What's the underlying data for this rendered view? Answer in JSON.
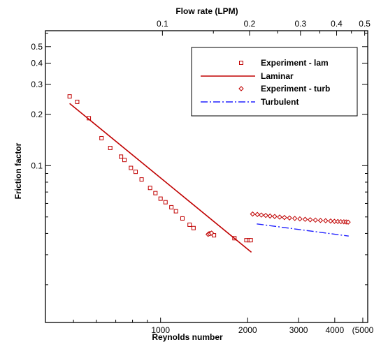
{
  "chart_data": {
    "type": "scatter",
    "xlabel": "Reynolds number",
    "x2label": "Flow rate (LPM)",
    "ylabel": "Friction factor",
    "xscale": "log",
    "yscale": "log",
    "xlim": [
      400,
      5200
    ],
    "ylim": [
      0.012,
      0.62
    ],
    "x_ticks": [
      {
        "value": 1000,
        "label": "1000"
      },
      {
        "value": 2000,
        "label": "2000"
      },
      {
        "value": 3000,
        "label": "3000"
      },
      {
        "value": 4000,
        "label": "4000"
      },
      {
        "value": 5000,
        "label": "(5000"
      }
    ],
    "x2_ticks": [
      {
        "value": 0.1,
        "label": "0.1"
      },
      {
        "value": 0.2,
        "label": "0.2"
      },
      {
        "value": 0.3,
        "label": "0.3"
      },
      {
        "value": 0.4,
        "label": "0.4"
      },
      {
        "value": 0.5,
        "label": "0.5"
      }
    ],
    "y_ticks": [
      {
        "value": 0.1,
        "label": "0.1"
      },
      {
        "value": 0.2,
        "label": "0.2"
      },
      {
        "value": 0.3,
        "label": "0.3"
      },
      {
        "value": 0.4,
        "label": "0.4"
      },
      {
        "value": 0.5,
        "label": "0.5"
      }
    ],
    "legend_position": "top-right",
    "series": [
      {
        "name": "Experiment - lam",
        "kind": "marker-square",
        "color": "#c00000",
        "x": [
          485,
          515,
          565,
          625,
          670,
          730,
          750,
          790,
          820,
          860,
          920,
          960,
          1000,
          1040,
          1090,
          1130,
          1190,
          1260,
          1300,
          1490,
          1530,
          1800,
          1980,
          2020,
          2050
        ],
        "y": [
          0.255,
          0.237,
          0.19,
          0.145,
          0.127,
          0.113,
          0.108,
          0.097,
          0.092,
          0.083,
          0.074,
          0.069,
          0.064,
          0.061,
          0.057,
          0.054,
          0.049,
          0.045,
          0.043,
          0.04,
          0.039,
          0.0375,
          0.0365,
          0.0365,
          0.0365
        ]
      },
      {
        "name": "Laminar",
        "kind": "line-solid",
        "color": "#c00000",
        "x": [
          485,
          2060
        ],
        "y": [
          0.232,
          0.031
        ]
      },
      {
        "name": "Experiment - turb",
        "kind": "marker-diamond",
        "color": "#c00000",
        "x": [
          1460,
          1480,
          1500,
          2080,
          2160,
          2230,
          2310,
          2390,
          2480,
          2580,
          2680,
          2790,
          2910,
          3030,
          3160,
          3290,
          3430,
          3570,
          3720,
          3870,
          3990,
          4100,
          4200,
          4300,
          4380,
          4450
        ],
        "y": [
          0.0395,
          0.0398,
          0.0402,
          0.052,
          0.0517,
          0.0513,
          0.051,
          0.0506,
          0.0503,
          0.0499,
          0.0496,
          0.0493,
          0.049,
          0.0487,
          0.0484,
          0.0481,
          0.0479,
          0.0477,
          0.0475,
          0.0473,
          0.0471,
          0.047,
          0.0469,
          0.0468,
          0.0467,
          0.0466
        ]
      },
      {
        "name": "Turbulent",
        "kind": "line-dashdot",
        "color": "#2020ff",
        "x": [
          2150,
          4470
        ],
        "y": [
          0.0455,
          0.0386
        ]
      }
    ]
  }
}
